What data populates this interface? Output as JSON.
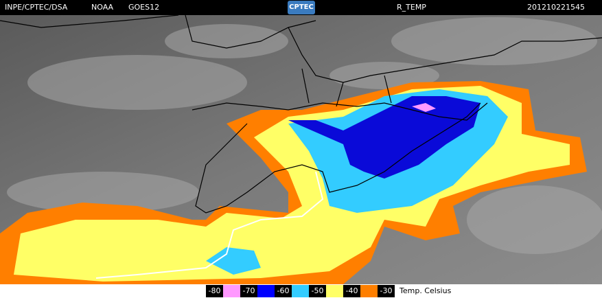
{
  "header": {
    "source": "INPE/CPTEC/DSA",
    "agency": "NOAA",
    "satellite": "GOES12",
    "logo": "CPTEC",
    "product": "R_TEMP",
    "timestamp": "201210221545"
  },
  "legend": {
    "items": [
      {
        "label": -80,
        "color": "#ff99ff"
      },
      {
        "label": -70,
        "color": "#0000ff"
      },
      {
        "label": -60,
        "color": "#33ccff"
      },
      {
        "label": -50,
        "color": "#ffff66"
      },
      {
        "label": -40,
        "color": "#ff7f00"
      },
      {
        "label": -30,
        "color": null
      }
    ],
    "caption": "Temp. Celsius"
  }
}
